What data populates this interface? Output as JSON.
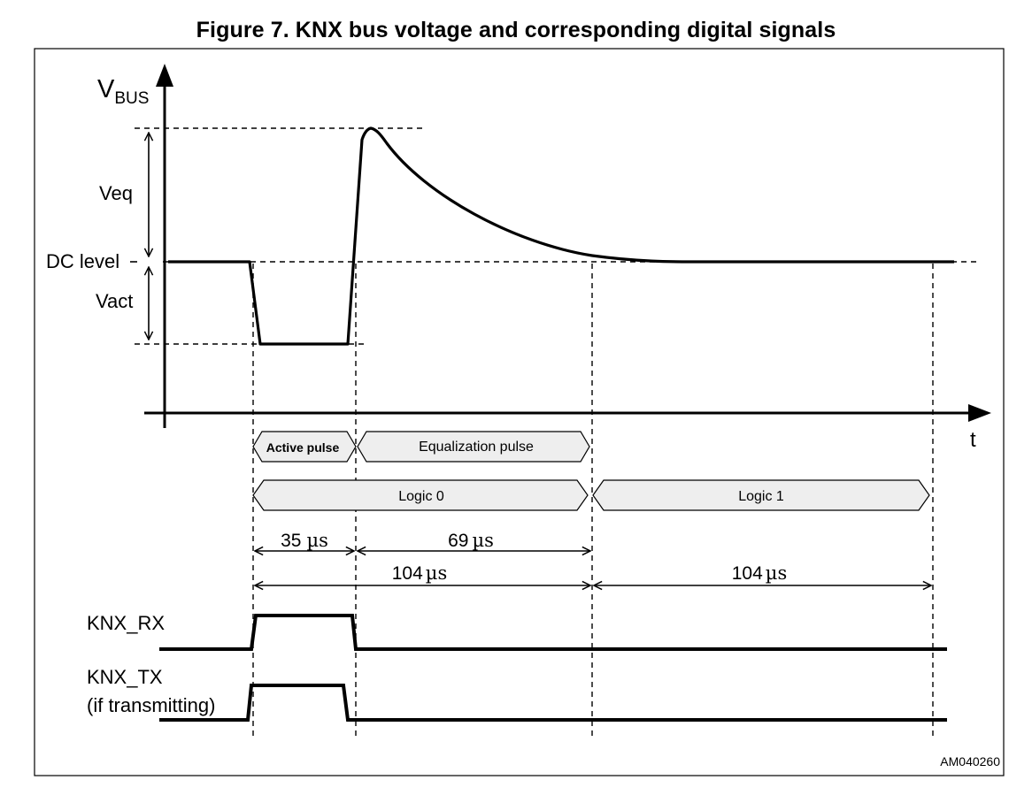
{
  "title": "Figure 7. KNX bus voltage and corresponding digital signals",
  "figure_id": "AM040260",
  "axis": {
    "y_main": "V",
    "y_sub": "BUS",
    "x": "t"
  },
  "levels": {
    "dc": "DC level",
    "veq": "Veq",
    "vact": "Vact"
  },
  "pulses": {
    "active": "Active pulse",
    "equalization": "Equalization pulse"
  },
  "logic": {
    "zero": "Logic 0",
    "one": "Logic 1"
  },
  "durations": {
    "active": {
      "num": "35",
      "unit": "µs"
    },
    "equalization": {
      "num": "69",
      "unit": "µs"
    },
    "logic0": {
      "num": "104",
      "unit": "µs"
    },
    "logic1": {
      "num": "104",
      "unit": "µs"
    }
  },
  "signals": {
    "rx": "KNX_RX",
    "tx_line1": "KNX_TX",
    "tx_line2": "(if transmitting)"
  }
}
